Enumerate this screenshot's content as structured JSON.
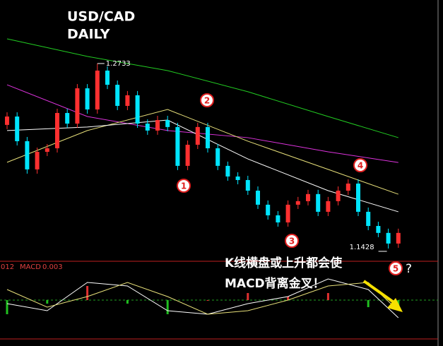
{
  "chart_data": {
    "type": "candlestick",
    "title": "USD/CAD",
    "subtitle": "DAILY",
    "up_color": "#ff3030",
    "down_color": "#00e5ff",
    "ylim": [
      1.1338,
      1.3181
    ],
    "open": [
      1.23,
      1.2359,
      1.2185,
      1.1986,
      1.211,
      1.2135,
      1.2384,
      1.2309,
      1.2558,
      1.2409,
      1.2683,
      1.2583,
      1.2434,
      1.2509,
      1.2309,
      1.226,
      1.2334,
      1.2285,
      1.2011,
      1.216,
      1.2285,
      1.2135,
      1.2011,
      1.1936,
      1.1911,
      1.1836,
      1.1737,
      1.1662,
      1.1612,
      1.1737,
      1.1762,
      1.1812,
      1.1687,
      1.1762,
      1.1836,
      1.1886,
      1.1687,
      1.1587,
      1.1538,
      1.1463
    ],
    "high": [
      1.2389,
      1.2389,
      1.2215,
      1.214,
      1.2165,
      1.2414,
      1.2414,
      1.2588,
      1.2588,
      1.2733,
      1.2713,
      1.2613,
      1.2539,
      1.2539,
      1.2339,
      1.2364,
      1.2364,
      1.2315,
      1.219,
      1.2315,
      1.2315,
      1.2165,
      1.2041,
      1.1966,
      1.1941,
      1.1866,
      1.1767,
      1.1692,
      1.1767,
      1.1792,
      1.1842,
      1.1842,
      1.1792,
      1.1866,
      1.1916,
      1.1916,
      1.1717,
      1.1617,
      1.1568,
      1.1568
    ],
    "low": [
      1.227,
      1.2155,
      1.1956,
      1.1956,
      1.208,
      1.2105,
      1.2279,
      1.2279,
      1.2379,
      1.2379,
      1.2553,
      1.2404,
      1.2404,
      1.2279,
      1.223,
      1.223,
      1.2255,
      1.1981,
      1.1981,
      1.213,
      1.2105,
      1.1981,
      1.1906,
      1.1881,
      1.1806,
      1.1707,
      1.1632,
      1.1582,
      1.1582,
      1.1707,
      1.1732,
      1.1657,
      1.1657,
      1.1732,
      1.1806,
      1.1657,
      1.1557,
      1.1508,
      1.1428,
      1.1433
    ],
    "close": [
      1.2359,
      1.2185,
      1.1986,
      1.211,
      1.2135,
      1.2384,
      1.2309,
      1.2558,
      1.2409,
      1.2683,
      1.2583,
      1.2434,
      1.2509,
      1.2309,
      1.226,
      1.2334,
      1.2285,
      1.2011,
      1.216,
      1.2285,
      1.2135,
      1.2011,
      1.1936,
      1.1911,
      1.1836,
      1.1737,
      1.1662,
      1.1612,
      1.1737,
      1.1762,
      1.1812,
      1.1687,
      1.1762,
      1.1836,
      1.1886,
      1.1687,
      1.1587,
      1.1538,
      1.1463,
      1.1538
    ],
    "moving_averages": {
      "x": [
        0,
        8,
        16,
        24,
        32,
        39
      ],
      "series": [
        {
          "color": "#22cc22",
          "values": [
            1.2907,
            1.2783,
            1.2683,
            1.2534,
            1.2359,
            1.221
          ]
        },
        {
          "color": "#dd33dd",
          "values": [
            1.2583,
            1.2359,
            1.226,
            1.221,
            1.211,
            1.2035
          ]
        },
        {
          "color": "#e8e07a",
          "values": [
            1.2036,
            1.226,
            1.2409,
            1.2185,
            1.1986,
            1.1811
          ]
        },
        {
          "color": "#ffffff",
          "values": [
            1.226,
            1.2285,
            1.2334,
            1.206,
            1.1836,
            1.1687
          ]
        }
      ]
    },
    "macd": {
      "scale_label": "012",
      "name": "MACD",
      "value": 0.003,
      "ylim": [
        -0.011,
        0.01
      ],
      "x": [
        0,
        4,
        8,
        12,
        16,
        20,
        24,
        28,
        32,
        36,
        39
      ],
      "main": {
        "color": "#ffffff",
        "values": [
          -0.001,
          -0.003,
          0.005,
          0.004,
          -0.003,
          -0.004,
          -0.001,
          0.001,
          0.006,
          0.003,
          -0.005
        ]
      },
      "signal": {
        "color": "#e8e07a",
        "values": [
          0.003,
          -0.002,
          0.001,
          0.005,
          0.001,
          -0.004,
          -0.003,
          0,
          0.004,
          0.005,
          -0.003
        ]
      },
      "histogram": [
        -0.004,
        -0.001,
        0.004,
        -0.001,
        -0.004,
        0,
        0.002,
        0.001,
        0.002,
        -0.002,
        -0.002
      ]
    },
    "markers": [
      "1",
      "2",
      "3",
      "4",
      "5"
    ],
    "annotations": [
      "K线横盘或上升都会使",
      "MACD背离金叉！",
      "?"
    ]
  }
}
